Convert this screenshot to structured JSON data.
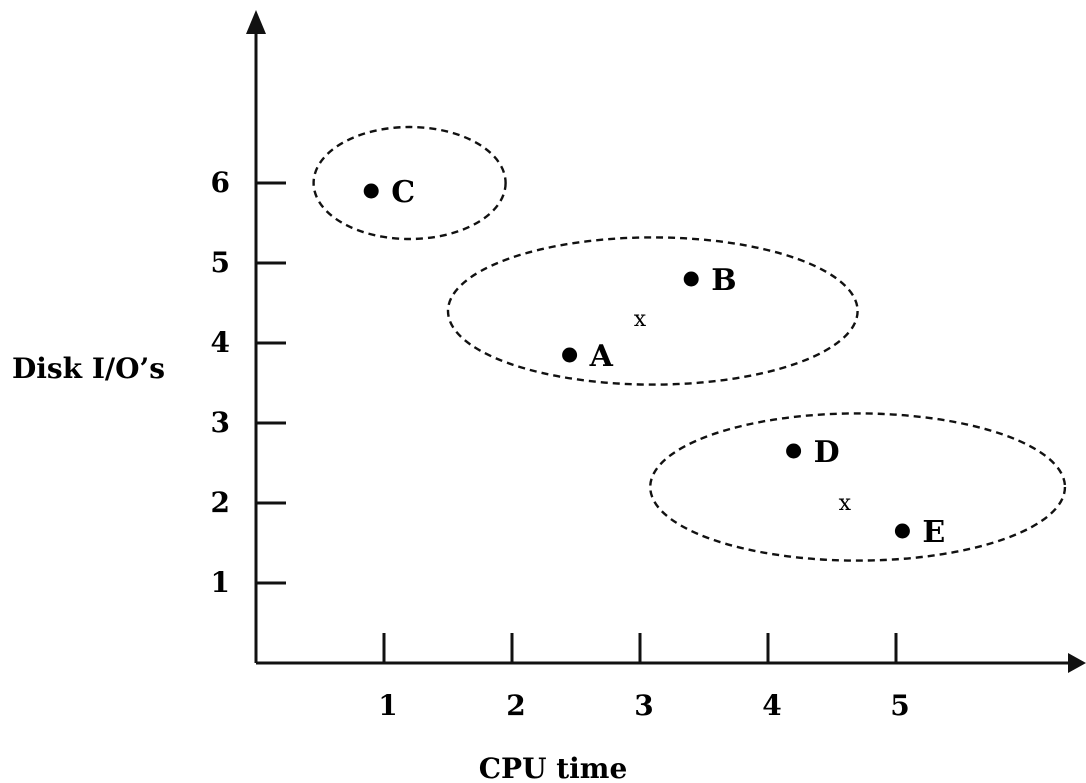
{
  "chart_data": {
    "type": "scatter",
    "xlabel": "CPU time",
    "ylabel": "Disk I/O’s",
    "xlim": [
      0,
      6.5
    ],
    "ylim": [
      0,
      7.8
    ],
    "x_ticks": [
      1,
      2,
      3,
      4,
      5
    ],
    "y_ticks": [
      1,
      2,
      3,
      4,
      5,
      6
    ],
    "grid": false,
    "points": [
      {
        "label": "A",
        "x": 2.45,
        "y": 3.85
      },
      {
        "label": "B",
        "x": 3.4,
        "y": 4.8
      },
      {
        "label": "C",
        "x": 0.9,
        "y": 5.9
      },
      {
        "label": "D",
        "x": 4.2,
        "y": 2.65
      },
      {
        "label": "E",
        "x": 5.05,
        "y": 1.65
      }
    ],
    "centroids": [
      {
        "label": "x",
        "x": 3.0,
        "y": 4.3
      },
      {
        "label": "x",
        "x": 4.6,
        "y": 2.0
      }
    ],
    "clusters": [
      {
        "members": [
          "C"
        ],
        "cx": 1.2,
        "cy": 6.0,
        "rx": 0.75,
        "ry": 0.7
      },
      {
        "members": [
          "A",
          "B"
        ],
        "cx": 3.1,
        "cy": 4.4,
        "rx": 1.6,
        "ry": 0.92
      },
      {
        "members": [
          "D",
          "E"
        ],
        "cx": 4.7,
        "cy": 2.2,
        "rx": 1.62,
        "ry": 0.92
      }
    ]
  }
}
